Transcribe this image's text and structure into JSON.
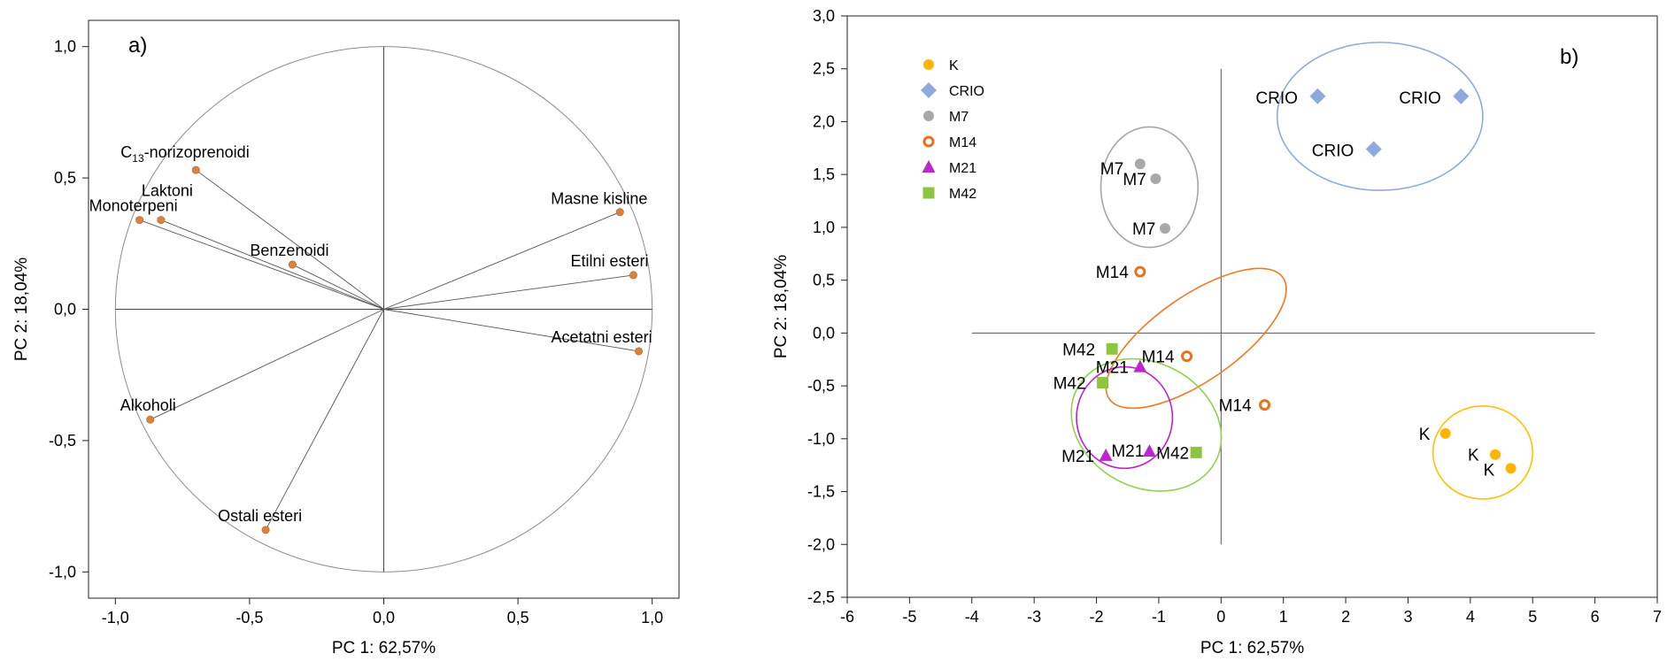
{
  "colors": {
    "orange_point": "#d9823e",
    "K": "#ffb400",
    "CRIO": "#8ea9dc",
    "M7": "#a8a8a8",
    "M14": "#e8711d",
    "M21": "#bf25cf",
    "M42": "#8cc63f",
    "ell_K": "#ffc000",
    "ell_CRIO": "#8eaadb",
    "ell_M7": "#a5a5a5",
    "ell_M14": "#f07820",
    "ell_M21": "#c020d0",
    "ell_M42": "#92d050"
  },
  "chart_data": [
    {
      "panel": "a)",
      "type": "scatter",
      "xlabel": "PC 1: 62,57%",
      "ylabel": "PC 2: 18,04%",
      "xlim": [
        -1.1,
        1.1
      ],
      "ylim": [
        -1.1,
        1.1
      ],
      "xticks": [
        "-1,0",
        "-0,5",
        "0,0",
        "0,5",
        "1,0"
      ],
      "yticks": [
        "1,0",
        "0,5",
        "0,0",
        "-0,5",
        "-1,0"
      ],
      "grid": false,
      "unit_circle": true,
      "points": [
        {
          "label_main": "C",
          "label_sub": "13",
          "label_rest": "-norizoprenoidi",
          "x": -0.7,
          "y": 0.53
        },
        {
          "label": "Laktoni",
          "x": -0.83,
          "y": 0.34
        },
        {
          "label": "Monoterpeni",
          "x": -0.91,
          "y": 0.34
        },
        {
          "label": "Benzenoidi",
          "x": -0.34,
          "y": 0.17
        },
        {
          "label": "Masne kisline",
          "x": 0.88,
          "y": 0.37
        },
        {
          "label": "Etilni esteri",
          "x": 0.93,
          "y": 0.13
        },
        {
          "label": "Acetatni esteri",
          "x": 0.95,
          "y": -0.16
        },
        {
          "label": "Alkoholi",
          "x": -0.87,
          "y": -0.42
        },
        {
          "label": "Ostali esteri",
          "x": -0.44,
          "y": -0.84
        }
      ]
    },
    {
      "panel": "b)",
      "type": "scatter",
      "xlabel": "PC 1: 62,57%",
      "ylabel": "PC 2: 18,04%",
      "xlim": [
        -6,
        7
      ],
      "ylim": [
        -2.5,
        3.0
      ],
      "xticks": [
        "-6",
        "-5",
        "-4",
        "-3",
        "-2",
        "-1",
        "0",
        "1",
        "2",
        "3",
        "4",
        "5",
        "6",
        "7"
      ],
      "yticks": [
        "3,0",
        "2,5",
        "2,0",
        "1,5",
        "1,0",
        "0,5",
        "0,0",
        "-0,5",
        "-1,0",
        "-1,5",
        "-2,0",
        "-2,5"
      ],
      "grid": false,
      "legend_position": "top-left",
      "legend": [
        "K",
        "CRIO",
        "M7",
        "M14",
        "M21",
        "M42"
      ],
      "series": [
        {
          "name": "K",
          "marker": "circle",
          "points": [
            {
              "label": "K",
              "x": 3.6,
              "y": -0.95
            },
            {
              "label": "K",
              "x": 4.4,
              "y": -1.15
            },
            {
              "label": "K",
              "x": 4.65,
              "y": -1.28
            }
          ]
        },
        {
          "name": "CRIO",
          "marker": "diamond",
          "points": [
            {
              "label": "CRIO",
              "x": 1.55,
              "y": 2.24
            },
            {
              "label": "CRIO",
              "x": 3.85,
              "y": 2.24
            },
            {
              "label": "CRIO",
              "x": 2.45,
              "y": 1.74
            }
          ]
        },
        {
          "name": "M7",
          "marker": "circle",
          "points": [
            {
              "label": "M7",
              "x": -1.3,
              "y": 1.6
            },
            {
              "label": "M7",
              "x": -1.05,
              "y": 1.46
            },
            {
              "label": "M7",
              "x": -0.9,
              "y": 0.99
            }
          ]
        },
        {
          "name": "M14",
          "marker": "ring",
          "points": [
            {
              "label": "M14",
              "x": -1.3,
              "y": 0.58
            },
            {
              "label": "M14",
              "x": -0.55,
              "y": -0.22
            },
            {
              "label": "M14",
              "x": 0.7,
              "y": -0.68
            }
          ]
        },
        {
          "name": "M21",
          "marker": "triangle",
          "points": [
            {
              "label": "M21",
              "x": -1.3,
              "y": -0.32
            },
            {
              "label": "M21",
              "x": -1.85,
              "y": -1.16
            },
            {
              "label": "M21",
              "x": -1.15,
              "y": -1.12
            }
          ]
        },
        {
          "name": "M42",
          "marker": "square",
          "points": [
            {
              "label": "M42",
              "x": -1.75,
              "y": -0.15
            },
            {
              "label": "M42",
              "x": -1.9,
              "y": -0.47
            },
            {
              "label": "M42",
              "x": -0.4,
              "y": -1.13
            }
          ]
        }
      ],
      "ellipses": [
        {
          "group": "CRIO",
          "cx": 2.55,
          "cy": 2.05,
          "rx": 1.65,
          "ry": 0.7,
          "rot": 0
        },
        {
          "group": "M7",
          "cx": -1.15,
          "cy": 1.38,
          "rx": 0.78,
          "ry": 0.57,
          "rot": 0
        },
        {
          "group": "M14",
          "cx": -0.4,
          "cy": -0.05,
          "rx": 1.7,
          "ry": 0.4,
          "rot": -35
        },
        {
          "group": "M42",
          "cx": -1.2,
          "cy": -0.87,
          "rx": 1.0,
          "ry": 0.74,
          "rot": -62
        },
        {
          "group": "M21",
          "cx": -1.55,
          "cy": -0.8,
          "rx": 0.77,
          "ry": 0.48,
          "rot": 0
        },
        {
          "group": "K",
          "cx": 4.2,
          "cy": -1.13,
          "rx": 0.8,
          "ry": 0.44,
          "rot": 0
        }
      ]
    }
  ]
}
